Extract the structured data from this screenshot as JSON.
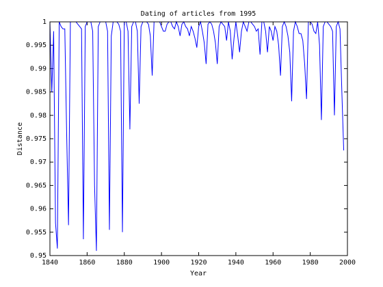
{
  "chart_data": {
    "type": "line",
    "title": "Dating of articles from 1995",
    "xlabel": "Year",
    "ylabel": "Distance",
    "x": [
      1840,
      1841,
      1842,
      1843,
      1844,
      1845,
      1846,
      1847,
      1848,
      1849,
      1850,
      1851,
      1852,
      1853,
      1854,
      1855,
      1856,
      1857,
      1858,
      1859,
      1860,
      1861,
      1862,
      1863,
      1864,
      1865,
      1866,
      1867,
      1868,
      1869,
      1870,
      1871,
      1872,
      1873,
      1874,
      1875,
      1876,
      1877,
      1878,
      1879,
      1880,
      1881,
      1882,
      1883,
      1884,
      1885,
      1886,
      1887,
      1888,
      1889,
      1890,
      1891,
      1892,
      1893,
      1894,
      1895,
      1896,
      1897,
      1898,
      1899,
      1900,
      1901,
      1902,
      1903,
      1904,
      1905,
      1906,
      1907,
      1908,
      1909,
      1910,
      1911,
      1912,
      1913,
      1914,
      1915,
      1916,
      1917,
      1918,
      1919,
      1920,
      1921,
      1922,
      1923,
      1924,
      1925,
      1926,
      1927,
      1928,
      1929,
      1930,
      1931,
      1932,
      1933,
      1934,
      1935,
      1936,
      1937,
      1938,
      1939,
      1940,
      1941,
      1942,
      1943,
      1944,
      1945,
      1946,
      1947,
      1948,
      1949,
      1950,
      1951,
      1952,
      1953,
      1954,
      1955,
      1956,
      1957,
      1958,
      1959,
      1960,
      1961,
      1962,
      1963,
      1964,
      1965,
      1966,
      1967,
      1968,
      1969,
      1970,
      1971,
      1972,
      1973,
      1974,
      1975,
      1976,
      1977,
      1978,
      1979,
      1980,
      1981,
      1982,
      1983,
      1984,
      1985,
      1986,
      1987,
      1988,
      1989,
      1990,
      1991,
      1992,
      1993,
      1994,
      1995,
      1996,
      1997,
      1998
    ],
    "series": [
      {
        "name": "Distance",
        "color": "#0000ff",
        "values": [
          1,
          0.985,
          0.998,
          0.957,
          0.9515,
          1,
          0.999,
          0.9985,
          0.9985,
          0.976,
          0.9565,
          1,
          1,
          1,
          1,
          0.9995,
          0.999,
          0.9985,
          0.9535,
          0.999,
          1,
          1,
          1,
          0.998,
          0.965,
          0.951,
          0.999,
          1,
          1,
          1,
          1,
          0.998,
          0.9555,
          0.997,
          1,
          1,
          1,
          0.9995,
          0.998,
          0.955,
          1,
          1,
          0.998,
          0.977,
          0.999,
          1,
          1,
          0.998,
          0.9825,
          0.999,
          1,
          1,
          1,
          0.9995,
          0.997,
          0.9885,
          1,
          1,
          1,
          1,
          0.999,
          0.998,
          0.998,
          0.9995,
          1,
          1,
          0.999,
          0.9985,
          1,
          0.999,
          0.997,
          0.9995,
          1,
          0.999,
          0.9985,
          0.997,
          0.999,
          0.998,
          0.9965,
          0.9945,
          0.999,
          1,
          0.998,
          0.9955,
          0.991,
          0.9995,
          1,
          0.9995,
          0.998,
          0.9955,
          0.991,
          0.999,
          1,
          0.9995,
          0.999,
          0.996,
          1,
          0.998,
          0.992,
          0.9965,
          1,
          0.997,
          0.9935,
          0.998,
          1,
          0.999,
          0.998,
          1,
          1,
          0.9995,
          0.999,
          0.998,
          0.9985,
          0.993,
          1,
          1,
          0.998,
          0.9935,
          0.999,
          0.998,
          0.996,
          0.999,
          0.998,
          0.995,
          0.9885,
          0.999,
          1,
          0.999,
          0.997,
          0.9935,
          0.983,
          0.998,
          1,
          0.999,
          0.9975,
          0.9975,
          0.996,
          0.991,
          0.9835,
          1,
          1,
          0.9995,
          0.998,
          0.9975,
          1,
          0.995,
          0.979,
          0.999,
          1,
          1,
          0.9995,
          0.999,
          0.998,
          0.98,
          0.999,
          1,
          0.9985,
          0.985,
          0.9725
        ]
      }
    ],
    "xlim": [
      1840,
      2000
    ],
    "xticks": [
      1840,
      1860,
      1880,
      1900,
      1920,
      1940,
      1960,
      1980,
      2000
    ],
    "ylim": [
      0.95,
      1
    ],
    "yticks": [
      0.95,
      0.955,
      0.96,
      0.965,
      0.97,
      0.975,
      0.98,
      0.985,
      0.99,
      0.995,
      1
    ]
  }
}
